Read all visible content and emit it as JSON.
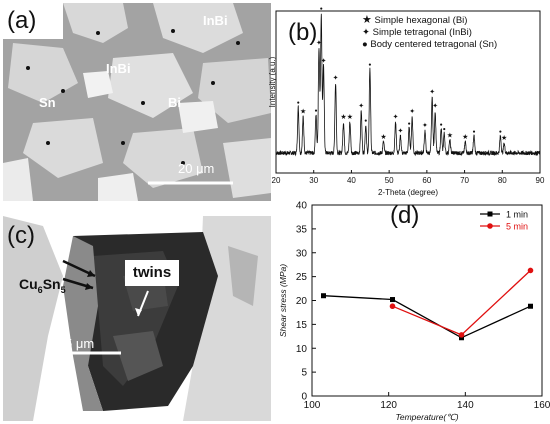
{
  "panel_a": {
    "label": "(a)",
    "phase_labels": [
      "InBi",
      "InBi",
      "Sn",
      "Bi"
    ],
    "scale_text": "20 μm"
  },
  "panel_b": {
    "label": "(b)",
    "legend": [
      "Simple hexagonal (Bi)",
      "Simple tetragonal (InBi)",
      "Body centered tetragonal  (Sn)"
    ],
    "xlabel": "2-Theta (degree)",
    "ylabel": "Intensity (a.u.)",
    "xticks": [
      "20",
      "30",
      "40",
      "50",
      "60",
      "70",
      "80",
      "90"
    ]
  },
  "panel_c": {
    "label": "(c)",
    "compound_label": "Cu",
    "compound_sub1": "6",
    "compound_mid": "Sn",
    "compound_sub2": "5",
    "twins_label": "twins",
    "scale_text": "5 μm"
  },
  "panel_d": {
    "label": "(d)"
  },
  "chart_data": [
    {
      "type": "line",
      "title": "",
      "xlabel": "2-Theta (degree)",
      "ylabel": "Intensity (a.u.)",
      "xlim": [
        20,
        90
      ],
      "series_name": "",
      "peaks": [
        {
          "x": 25.9,
          "h": 0.33,
          "phase": "Sn"
        },
        {
          "x": 27.2,
          "h": 0.26,
          "phase": "Bi"
        },
        {
          "x": 30.6,
          "h": 0.27,
          "phase": "Sn"
        },
        {
          "x": 31.4,
          "h": 0.75,
          "phase": "InBi"
        },
        {
          "x": 32.0,
          "h": 1.0,
          "phase": "Sn"
        },
        {
          "x": 32.6,
          "h": 0.62,
          "phase": "InBi"
        },
        {
          "x": 35.8,
          "h": 0.5,
          "phase": "InBi"
        },
        {
          "x": 37.9,
          "h": 0.22,
          "phase": "Bi"
        },
        {
          "x": 39.6,
          "h": 0.22,
          "phase": "Bi"
        },
        {
          "x": 42.6,
          "h": 0.3,
          "phase": "InBi"
        },
        {
          "x": 43.8,
          "h": 0.2,
          "phase": "Sn"
        },
        {
          "x": 44.9,
          "h": 0.6,
          "phase": "Sn"
        },
        {
          "x": 48.5,
          "h": 0.08,
          "phase": "Bi"
        },
        {
          "x": 51.7,
          "h": 0.22,
          "phase": "InBi"
        },
        {
          "x": 53.0,
          "h": 0.12,
          "phase": "InBi"
        },
        {
          "x": 55.3,
          "h": 0.18,
          "phase": "Sn"
        },
        {
          "x": 56.1,
          "h": 0.26,
          "phase": "InBi"
        },
        {
          "x": 59.5,
          "h": 0.16,
          "phase": "InBi"
        },
        {
          "x": 61.4,
          "h": 0.4,
          "phase": "InBi"
        },
        {
          "x": 62.2,
          "h": 0.3,
          "phase": "InBi"
        },
        {
          "x": 63.8,
          "h": 0.17,
          "phase": "Sn"
        },
        {
          "x": 64.6,
          "h": 0.14,
          "phase": "Sn"
        },
        {
          "x": 66.1,
          "h": 0.09,
          "phase": "Bi"
        },
        {
          "x": 70.2,
          "h": 0.08,
          "phase": "Bi"
        },
        {
          "x": 72.5,
          "h": 0.12,
          "phase": "Sn"
        },
        {
          "x": 79.5,
          "h": 0.12,
          "phase": "Sn"
        },
        {
          "x": 80.5,
          "h": 0.07,
          "phase": "Bi"
        }
      ]
    },
    {
      "type": "line",
      "title": "",
      "xlabel": "Temperature(℃)",
      "ylabel": "Shear stress (MPa)",
      "xlim": [
        100,
        160
      ],
      "ylim": [
        0,
        40
      ],
      "xticks": [
        100,
        120,
        140,
        160
      ],
      "yticks": [
        0,
        5,
        10,
        15,
        20,
        25,
        30,
        35,
        40
      ],
      "legend_position": "top-right",
      "series": [
        {
          "name": "1 min",
          "color": "#000000",
          "marker": "square",
          "x": [
            103,
            121,
            139,
            157
          ],
          "y": [
            21.0,
            20.2,
            12.2,
            18.8
          ]
        },
        {
          "name": "5 min",
          "color": "#e01010",
          "marker": "circle",
          "x": [
            121,
            139,
            157
          ],
          "y": [
            18.8,
            12.8,
            26.3
          ]
        }
      ]
    }
  ]
}
